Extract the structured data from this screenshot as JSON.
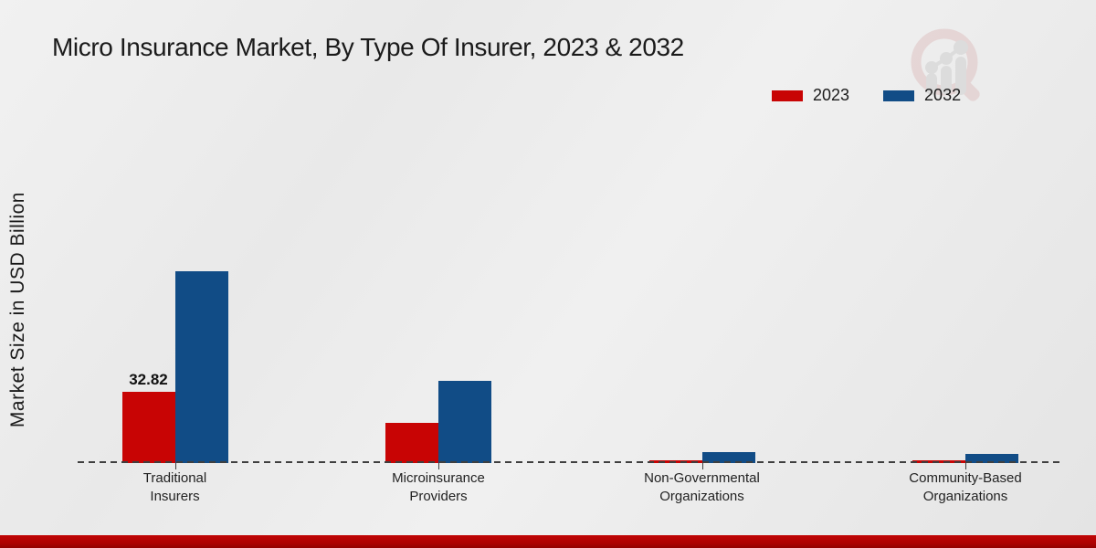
{
  "page": {
    "title": "Micro Insurance Market, By Type Of Insurer, 2023 & 2032",
    "ylabel": "Market Size in USD Billion"
  },
  "legend": [
    {
      "label": "2023",
      "color": "#c80404"
    },
    {
      "label": "2032",
      "color": "#114c86"
    }
  ],
  "watermark_icon": "magnifier-bar-chart-logo",
  "colors": {
    "series_2023": "#c80404",
    "series_2032": "#114c86",
    "baseline_dash": "#3f3f3f",
    "footer_strip": "#ae0202",
    "background": "#ebebeb"
  },
  "chart_data": {
    "type": "bar",
    "title": "Micro Insurance Market, By Type Of Insurer, 2023 & 2032",
    "xlabel": "",
    "ylabel": "Market Size in USD Billion",
    "categories": [
      "Traditional\nInsurers",
      "Microinsurance\nProviders",
      "Non-Governmental\nOrganizations",
      "Community-Based\nOrganizations"
    ],
    "series": [
      {
        "name": "2023",
        "color": "#c80404",
        "values": [
          32.82,
          18.6,
          1.4,
          1.1
        ],
        "labels": [
          "32.82",
          "",
          "",
          ""
        ]
      },
      {
        "name": "2032",
        "color": "#114c86",
        "values": [
          88.4,
          38.0,
          4.9,
          4.3
        ],
        "labels": [
          "",
          "",
          "",
          ""
        ]
      }
    ],
    "ylim": [
      0,
      95
    ],
    "y_axis_ticks_visible": false,
    "grid": false,
    "baseline_style": "dashed",
    "legend_position": "top-right",
    "note": "Only the 2023 Traditional Insurers bar carries a printed data label (32.82); other values estimated from bar heights."
  }
}
